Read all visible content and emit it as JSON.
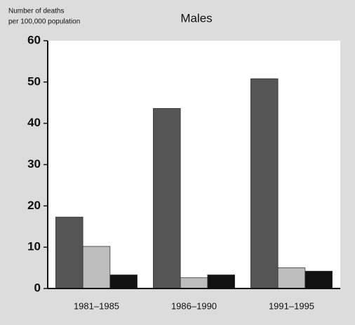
{
  "chart_data": {
    "type": "bar",
    "title": "Males",
    "ylabel": [
      "Number of deaths",
      "per 100,000 population"
    ],
    "categories": [
      "1981–1985",
      "1986–1990",
      "1991–1995"
    ],
    "series": [
      {
        "color": "#555555",
        "values": [
          17.3,
          43.6,
          50.8
        ]
      },
      {
        "color": "#bdbdbd",
        "values": [
          10.2,
          2.6,
          5.0
        ]
      },
      {
        "color": "#111111",
        "values": [
          3.3,
          3.3,
          4.2
        ]
      }
    ],
    "ylim": [
      0,
      60
    ],
    "yticks": [
      0,
      10,
      20,
      30,
      40,
      50,
      60
    ],
    "grid": false
  }
}
